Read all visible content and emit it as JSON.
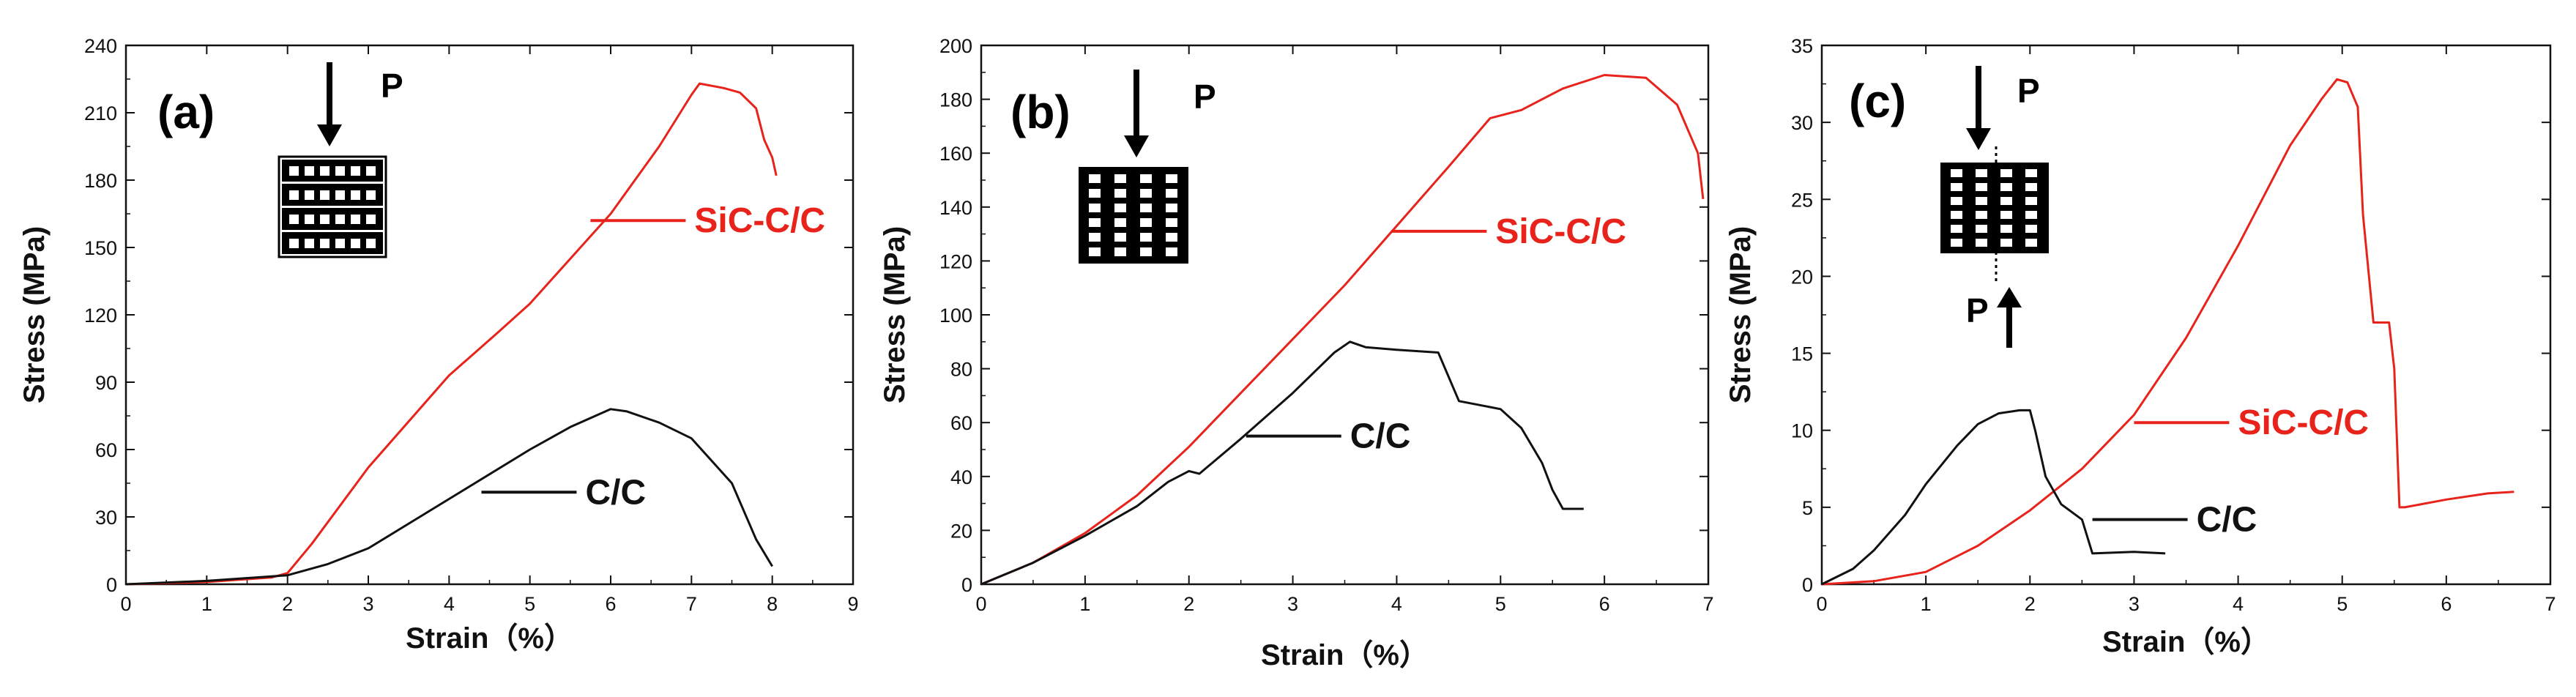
{
  "chart_data": [
    {
      "type": "line",
      "title": "",
      "panel_label": "(a)",
      "xlabel": "Strain（%）",
      "ylabel": "Stress (MPa)",
      "xlim": [
        0,
        9
      ],
      "ylim": [
        0,
        240
      ],
      "xticks": [
        "0",
        "1",
        "2",
        "3",
        "4",
        "5",
        "6",
        "7",
        "8",
        "9"
      ],
      "yticks": [
        "0",
        "30",
        "60",
        "90",
        "120",
        "150",
        "180",
        "210",
        "240"
      ],
      "load_labels": [
        "P"
      ],
      "series": [
        {
          "name": "SiC-C/C",
          "color": "#e8231b",
          "x": [
            0,
            1,
            1.8,
            2.0,
            2.3,
            3.0,
            4.0,
            4.6,
            5.0,
            6.0,
            6.6,
            7.0,
            7.1,
            7.4,
            7.6,
            7.8,
            7.9,
            8.0,
            8.05
          ],
          "y": [
            0,
            1,
            3,
            5,
            18,
            52,
            93,
            112,
            125,
            165,
            195,
            218,
            223,
            221,
            219,
            212,
            198,
            190,
            182
          ]
        },
        {
          "name": "C/C",
          "color": "#111111",
          "x": [
            0,
            1,
            2,
            2.5,
            3,
            4,
            5,
            5.5,
            6,
            6.2,
            6.6,
            7.0,
            7.5,
            7.8,
            8.0
          ],
          "y": [
            0,
            1.5,
            4,
            9,
            16,
            38,
            60,
            70,
            78,
            77,
            72,
            65,
            45,
            20,
            8
          ]
        }
      ],
      "legend": [
        {
          "label": "SiC-C/C",
          "color": "#e8231b",
          "x": 5.75,
          "y": 162
        },
        {
          "label": "C/C",
          "color": "#111111",
          "x": 4.4,
          "y": 41
        }
      ]
    },
    {
      "type": "line",
      "title": "",
      "panel_label": "(b)",
      "xlabel": "Strain（%）",
      "ylabel": "Stress (MPa)",
      "xlim": [
        0,
        7
      ],
      "ylim": [
        0,
        200
      ],
      "xticks": [
        "0",
        "1",
        "2",
        "3",
        "4",
        "5",
        "6",
        "7"
      ],
      "yticks": [
        "0",
        "20",
        "40",
        "60",
        "80",
        "100",
        "120",
        "140",
        "160",
        "180",
        "200"
      ],
      "load_labels": [
        "P"
      ],
      "series": [
        {
          "name": "SiC-C/C",
          "color": "#e8231b",
          "x": [
            0,
            0.5,
            1,
            1.5,
            2,
            2.5,
            3,
            3.5,
            4,
            4.5,
            4.9,
            5.2,
            5.6,
            6.0,
            6.4,
            6.7,
            6.9,
            6.95
          ],
          "y": [
            0,
            8,
            19,
            33,
            51,
            71,
            91,
            111,
            133,
            155,
            173,
            176,
            184,
            189,
            188,
            178,
            160,
            143
          ]
        },
        {
          "name": "C/C",
          "color": "#111111",
          "x": [
            0,
            0.5,
            1,
            1.5,
            1.8,
            2.0,
            2.1,
            2.5,
            3.0,
            3.4,
            3.55,
            3.7,
            4.0,
            4.4,
            4.6,
            5.0,
            5.2,
            5.4,
            5.5,
            5.6,
            5.8
          ],
          "y": [
            0,
            8,
            18,
            29,
            38,
            42,
            41,
            54,
            71,
            86,
            90,
            88,
            87,
            86,
            68,
            65,
            58,
            45,
            35,
            28,
            28
          ]
        }
      ],
      "legend": [
        {
          "label": "SiC-C/C",
          "color": "#e8231b",
          "x": 3.95,
          "y": 131
        },
        {
          "label": "C/C",
          "color": "#111111",
          "x": 2.55,
          "y": 55
        }
      ]
    },
    {
      "type": "line",
      "title": "",
      "panel_label": "(c)",
      "xlabel": "Strain（%）",
      "ylabel": "Stress (MPa)",
      "xlim": [
        0,
        7
      ],
      "ylim": [
        0,
        35
      ],
      "xticks": [
        "0",
        "1",
        "2",
        "3",
        "4",
        "5",
        "6",
        "7"
      ],
      "yticks": [
        "0",
        "5",
        "10",
        "15",
        "20",
        "25",
        "30",
        "35"
      ],
      "load_labels": [
        "P",
        "P"
      ],
      "series": [
        {
          "name": "SiC-C/C",
          "color": "#e8231b",
          "x": [
            0,
            0.5,
            1,
            1.5,
            2,
            2.5,
            3,
            3.5,
            4,
            4.5,
            4.8,
            4.95,
            5.05,
            5.15,
            5.2,
            5.3,
            5.45,
            5.5,
            5.55,
            5.6,
            6.0,
            6.4,
            6.65
          ],
          "y": [
            0,
            0.2,
            0.8,
            2.5,
            4.8,
            7.5,
            11,
            16,
            22,
            28.5,
            31.5,
            32.8,
            32.6,
            31,
            24,
            17,
            17,
            14,
            5,
            5,
            5.5,
            5.9,
            6
          ]
        },
        {
          "name": "C/C",
          "color": "#111111",
          "x": [
            0,
            0.3,
            0.5,
            0.8,
            1.0,
            1.3,
            1.5,
            1.7,
            1.9,
            2.0,
            2.05,
            2.15,
            2.3,
            2.5,
            2.6,
            3.0,
            3.3
          ],
          "y": [
            0,
            1,
            2.2,
            4.5,
            6.5,
            9.0,
            10.4,
            11.1,
            11.3,
            11.3,
            10,
            7,
            5.2,
            4.2,
            2,
            2.1,
            2
          ]
        }
      ],
      "legend": [
        {
          "label": "SiC-C/C",
          "color": "#e8231b",
          "x": 3.0,
          "y": 10.5
        },
        {
          "label": "C/C",
          "color": "#111111",
          "x": 2.6,
          "y": 4.2
        }
      ]
    }
  ]
}
